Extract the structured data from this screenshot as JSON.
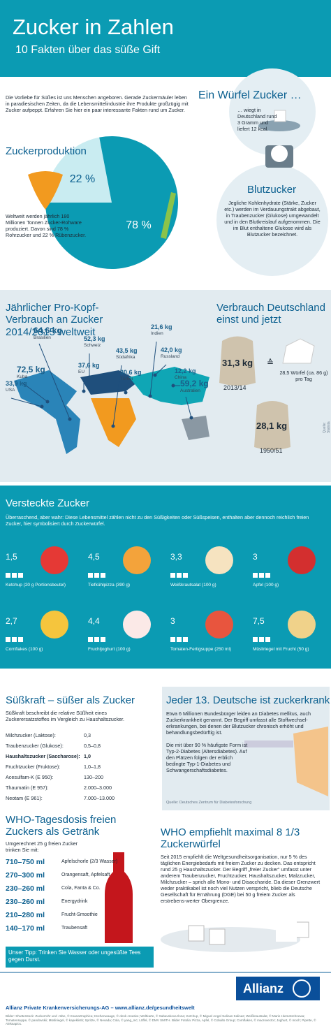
{
  "header": {
    "title": "Zucker in Zahlen",
    "subtitle": "10 Fakten über das süße Gift"
  },
  "intro": "Die Vorliebe für Süßes ist uns Menschen angeboren. Gerade Zuckermäuler leben in paradiesischen Zeiten, da die Lebensmittelindustrie ihre Produkte großzügig mit Zucker aufpeppt. Erfahren Sie hier ein paar interessante Fakten rund um Zucker.",
  "wuerfel": {
    "title": "Ein Würfel Zucker …",
    "text": "… wiegt in Deutschland rund 3 Gramm und liefert 12 kcal."
  },
  "produktion": {
    "title": "Zuckerproduktion",
    "text": "Weltweit werden jährlich 180 Millionen Tonnen Zucker-Rohware produziert. Davon sind 78 % Rohrzucker und 22 % Rübenzucker.",
    "pie": {
      "values": [
        22,
        78
      ],
      "value_labels": [
        "22 %",
        "78 %"
      ]
    }
  },
  "blutzucker": {
    "title": "Blutzucker",
    "text": "Jegliche Kohlenhydrate (Stärke, Zucker etc.) werden im Verdauungstrakt abgebaut, in Traubenzucker (Glukose) umgewandelt und in den Blutkreislauf aufgenommen. Die im Blut enthaltene Glukose wird als Blutzucker bezeichnet."
  },
  "welt": {
    "title": "Jährlicher Pro-Kopf-Verbrauch an Zucker 2014/2015 weltweit",
    "countries": [
      {
        "value": "64,6 kg",
        "name": "Brasilien"
      },
      {
        "value": "72,5 kg",
        "name": "Kuba"
      },
      {
        "value": "33,9 kg",
        "name": "USA"
      },
      {
        "value": "52,3 kg",
        "name": "Schweiz"
      },
      {
        "value": "37,6 kg",
        "name": "EU"
      },
      {
        "value": "43,5 kg",
        "name": "Südafrika"
      },
      {
        "value": "30,6 kg",
        "name": "Türkei"
      },
      {
        "value": "21,6 kg",
        "name": "Indien"
      },
      {
        "value": "42,0 kg",
        "name": "Russland"
      },
      {
        "value": "12,2 kg",
        "name": "China"
      },
      {
        "value": "59,2 kg",
        "name": "Australien"
      }
    ]
  },
  "deutschland": {
    "title": "Verbrauch Deutschland einst und jetzt",
    "now": {
      "value": "31,3 kg",
      "period": "2013/14"
    },
    "equals": "≙",
    "cubes": "28,5 Würfel (ca. 86 g) pro Tag",
    "then": {
      "value": "28,1 kg",
      "period": "1950/51"
    },
    "source": "Quelle: Statista 2016"
  },
  "versteckt": {
    "title": "Versteckte Zucker",
    "text": "Überraschend, aber wahr: Diese Lebensmittel zählen nicht zu den Süßigkeiten oder Süßspeisen, enthalten aber dennoch reichlich freien Zucker, hier symbolisiert durch Zuckerwürfel.",
    "items": [
      {
        "count": "1,5",
        "label": "Ketchup (20 g Portionsbeutel)"
      },
      {
        "count": "4,5",
        "label": "Tiefkühlpizza (390 g)"
      },
      {
        "count": "3,3",
        "label": "Weißkrautsalat (100 g)"
      },
      {
        "count": "3",
        "label": "Apfel (100 g)"
      },
      {
        "count": "2,7",
        "label": "Cornflakes (100 g)"
      },
      {
        "count": "4,4",
        "label": "Fruchtjoghurt (100 g)"
      },
      {
        "count": "3",
        "label": "Tomaten-Fertigsuppe (250 ml)"
      },
      {
        "count": "7,5",
        "label": "Müsliriegel mit Frucht (50 g)"
      }
    ]
  },
  "suesskraft": {
    "title": "Süßkraft – süßer als Zucker",
    "text": "Süßkraft beschreibt die relative Süßheit eines Zuckerersatzstoffes im Vergleich zu Haushaltszucker.",
    "rows": [
      [
        "Milchzucker (Laktose):",
        "0,3"
      ],
      [
        "Traubenzucker (Glukose):",
        "0,5–0,8"
      ],
      [
        "Haushaltszucker (Saccharose):",
        "1,0"
      ],
      [
        "Fruchtzucker (Fruktose):",
        "1,0–1,8"
      ],
      [
        "Acesulfam-K (E 950):",
        "130–200"
      ],
      [
        "Thaumatin (E 957):",
        "2.000–3.000"
      ],
      [
        "Neotam (E 961):",
        "7.000–13.000"
      ]
    ]
  },
  "diabetes": {
    "title": "Jeder 13. Deutsche ist zuckerkrank",
    "text1": "Etwa 6 Millionen Bundesbürger leiden an Diabetes mellitus, auch Zuckerkrankheit genannt. Der Begriff umfasst alle Stoffwechsel-erkrankungen, bei denen der Blutzucker chronisch erhöht und behandlungsbedürftig ist.",
    "text2": "Die mit über 90 % häufigste Form ist Typ-2-Diabetes (Altersdiabetes). Auf den Plätzen folgen der erblich bedingte Typ-1-Diabetes und Schwangerschaftsdiabetes.",
    "source": "Quelle: Deutsches Zentrum für Diabetesforschung"
  },
  "getraenk": {
    "title": "WHO-Tagesdosis freien Zuckers als Getränk",
    "intro": "Umgerechnet 25 g freien Zucker trinken Sie mit:",
    "rows": [
      [
        "710–750 ml",
        "Apfelschorle (2/3 Wasser)"
      ],
      [
        "270–300 ml",
        "Orangensaft, Apfelsaft"
      ],
      [
        "230–260 ml",
        "Cola, Fanta & Co."
      ],
      [
        "230–260 ml",
        "Energydrink"
      ],
      [
        "210–280 ml",
        "Frucht-Smoothie"
      ],
      [
        "140–170 ml",
        "Traubensaft"
      ]
    ],
    "tip": "Unser Tipp: Trinken Sie Wasser oder ungesüßte Tees gegen Durst."
  },
  "who": {
    "title": "WHO empfiehlt maximal 8 1/3 Zuckerwürfel",
    "text": "Seit 2015 empfiehlt die Weltgesundheitsorganisation, nur 5 % des täglichen Energiebedarfs mit freiem Zucker zu decken. Das entspricht rund 25 g Haushaltszucker. Der Begriff „freier Zucker“ umfasst unter anderem Traubenzucker, Fruchtzucker, Haushaltszucker, Malzzucker, Milchzucker – sprich alle Mono- und Disaccharide. Da dieser Grenzwert weder praktikabel ist noch viel Nutzen verspricht, blieb die Deutsche Gesellschaft für Ernährung (DGE) bei 50 g freiem Zucker als erstrebens-werter Obergrenze."
  },
  "footer": {
    "logo": "Allianz",
    "link": "Allianz Private Krankenversicherungs-AG – www.allianz.de/gesundheitswelt",
    "credits": "Bilder: Shutterstock: Zuckerrohr und -rübe, © KsanaGraphica; Küchenwaage, © denk creative; Weltkarte, © Sabavskova Ilona; Ketchup, © Miguel Angel Salinas Salinas; Weißkrautsalat, © Marie Hiemetschnewa; Tomatensuppe, © pandovskii; Müsliriegel, © kapeklistk; Spritze, © Nevada; Cola, © yang_mc; Löffel, © DMV SMITH. Bilder Fotolia: Pizza, Apfel, © Cobalto Group; Cornflakes, © macrovector; Joghurt, © moch; Pipette, © Aleksapics."
  }
}
